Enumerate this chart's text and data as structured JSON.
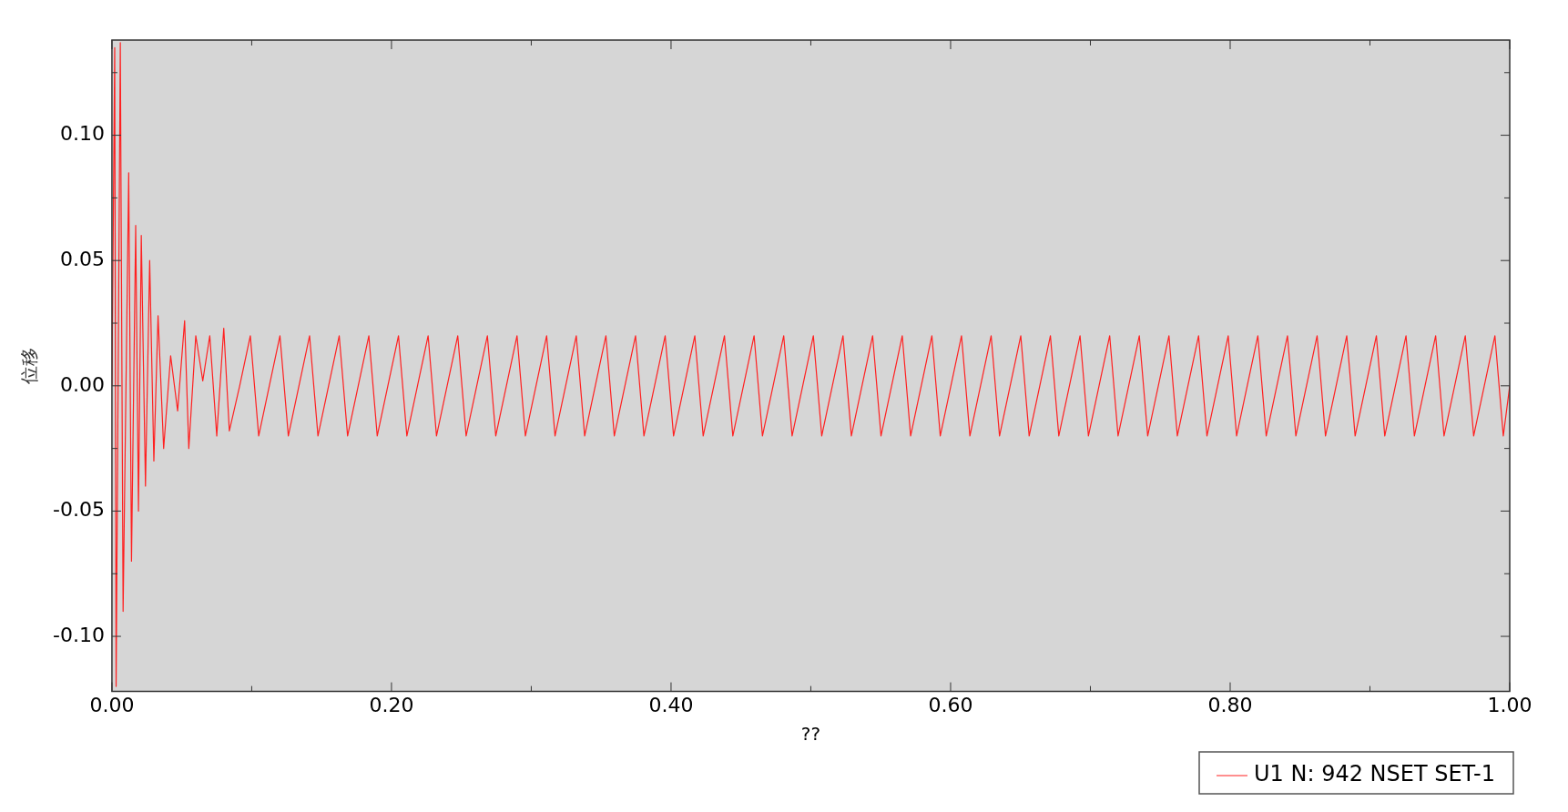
{
  "chart_data": {
    "type": "line",
    "xlabel": "??",
    "ylabel": "位移",
    "xlim": [
      0,
      1
    ],
    "ylim": [
      -0.122,
      0.138
    ],
    "xticks": [
      {
        "value": 0,
        "label": "0.00"
      },
      {
        "value": 0.1,
        "label": null
      },
      {
        "value": 0.2,
        "label": "0.20"
      },
      {
        "value": 0.3,
        "label": null
      },
      {
        "value": 0.4,
        "label": "0.40"
      },
      {
        "value": 0.5,
        "label": null
      },
      {
        "value": 0.6,
        "label": "0.60"
      },
      {
        "value": 0.7,
        "label": null
      },
      {
        "value": 0.8,
        "label": "0.80"
      },
      {
        "value": 0.9,
        "label": null
      },
      {
        "value": 1,
        "label": "1.00"
      }
    ],
    "yticks": [
      {
        "value": -0.1,
        "label": "-0.10"
      },
      {
        "value": -0.075,
        "label": null
      },
      {
        "value": -0.05,
        "label": "-0.05"
      },
      {
        "value": -0.025,
        "label": null
      },
      {
        "value": 0,
        "label": "0.00"
      },
      {
        "value": 0.025,
        "label": null
      },
      {
        "value": 0.05,
        "label": "0.05"
      },
      {
        "value": 0.075,
        "label": null
      },
      {
        "value": 0.1,
        "label": "0.10"
      },
      {
        "value": 0.125,
        "label": null
      }
    ],
    "grid": false,
    "legend": "bottom right",
    "marker": "none",
    "line_style": "solid",
    "series": [
      {
        "name": "U1 N: 942 NSET SET-1",
        "color": "#ff2020",
        "x": [
          0,
          0.002,
          0.003,
          0.006,
          0.008,
          0.012,
          0.014,
          0.017,
          0.019,
          0.021,
          0.024,
          0.027,
          0.03,
          0.033,
          0.037,
          0.042,
          0.047,
          0.052,
          0.055,
          0.06,
          0.065,
          0.07,
          0.075,
          0.08,
          0.084,
          0.0914,
          0.099,
          0.105,
          0.1126,
          0.1202,
          0.1262,
          0.1338,
          0.1414,
          0.1474,
          0.155,
          0.1626,
          0.1686,
          0.1762,
          0.1838,
          0.1898,
          0.1974,
          0.205,
          0.211,
          0.2186,
          0.2262,
          0.2322,
          0.2398,
          0.2474,
          0.2534,
          0.261,
          0.2686,
          0.2746,
          0.2822,
          0.2898,
          0.2958,
          0.3034,
          0.311,
          0.317,
          0.3246,
          0.3322,
          0.3382,
          0.3458,
          0.3534,
          0.3594,
          0.367,
          0.3746,
          0.3806,
          0.3882,
          0.3958,
          0.4018,
          0.4094,
          0.417,
          0.423,
          0.4306,
          0.4382,
          0.4442,
          0.4518,
          0.4594,
          0.4654,
          0.473,
          0.4806,
          0.4866,
          0.4942,
          0.5018,
          0.5078,
          0.5154,
          0.523,
          0.529,
          0.5366,
          0.5442,
          0.5502,
          0.5578,
          0.5654,
          0.5714,
          0.579,
          0.5866,
          0.5926,
          0.6002,
          0.6078,
          0.6138,
          0.6214,
          0.629,
          0.635,
          0.6426,
          0.6502,
          0.6562,
          0.6638,
          0.6714,
          0.6774,
          0.685,
          0.6926,
          0.6986,
          0.7062,
          0.7138,
          0.7198,
          0.7274,
          0.735,
          0.741,
          0.7486,
          0.7562,
          0.7622,
          0.7698,
          0.7774,
          0.7834,
          0.791,
          0.7986,
          0.8046,
          0.8122,
          0.8198,
          0.8258,
          0.8334,
          0.841,
          0.847,
          0.8546,
          0.8622,
          0.8682,
          0.8758,
          0.8834,
          0.8894,
          0.897,
          0.9046,
          0.9106,
          0.9182,
          0.9258,
          0.9318,
          0.9394,
          0.947,
          0.953,
          0.9606,
          0.9682,
          0.9742,
          0.9818,
          0.9894,
          0.9954,
          1
        ],
        "values": [
          0,
          0.135,
          -0.12,
          0.137,
          -0.09,
          0.085,
          -0.07,
          0.064,
          -0.05,
          0.06,
          -0.04,
          0.05,
          -0.03,
          0.028,
          -0.025,
          0.012,
          -0.01,
          0.026,
          -0.025,
          0.02,
          0.002,
          0.02,
          -0.02,
          0.023,
          -0.018,
          0,
          0.02,
          -0.02,
          0,
          0.02,
          -0.02,
          0,
          0.02,
          -0.02,
          0,
          0.02,
          -0.02,
          0,
          0.02,
          -0.02,
          0,
          0.02,
          -0.02,
          0,
          0.02,
          -0.02,
          0,
          0.02,
          -0.02,
          0,
          0.02,
          -0.02,
          0,
          0.02,
          -0.02,
          0,
          0.02,
          -0.02,
          0,
          0.02,
          -0.02,
          0,
          0.02,
          -0.02,
          0,
          0.02,
          -0.02,
          0,
          0.02,
          -0.02,
          0,
          0.02,
          -0.02,
          0,
          0.02,
          -0.02,
          0,
          0.02,
          -0.02,
          0,
          0.02,
          -0.02,
          0,
          0.02,
          -0.02,
          0,
          0.02,
          -0.02,
          0,
          0.02,
          -0.02,
          0,
          0.02,
          -0.02,
          0,
          0.02,
          -0.02,
          0,
          0.02,
          -0.02,
          0,
          0.02,
          -0.02,
          0,
          0.02,
          -0.02,
          0,
          0.02,
          -0.02,
          0,
          0.02,
          -0.02,
          0,
          0.02,
          -0.02,
          0,
          0.02,
          -0.02,
          0,
          0.02,
          -0.02,
          0,
          0.02,
          -0.02,
          0,
          0.02,
          -0.02,
          0,
          0.02,
          -0.02,
          0,
          0.02,
          -0.02,
          0,
          0.02,
          -0.02,
          0,
          0.02,
          -0.02,
          0,
          0.02,
          -0.02,
          0,
          0.02,
          -0.02,
          0,
          0.02,
          -0.02,
          0,
          0.02,
          -0.02,
          0,
          0.02,
          -0.02,
          0
        ]
      }
    ]
  }
}
